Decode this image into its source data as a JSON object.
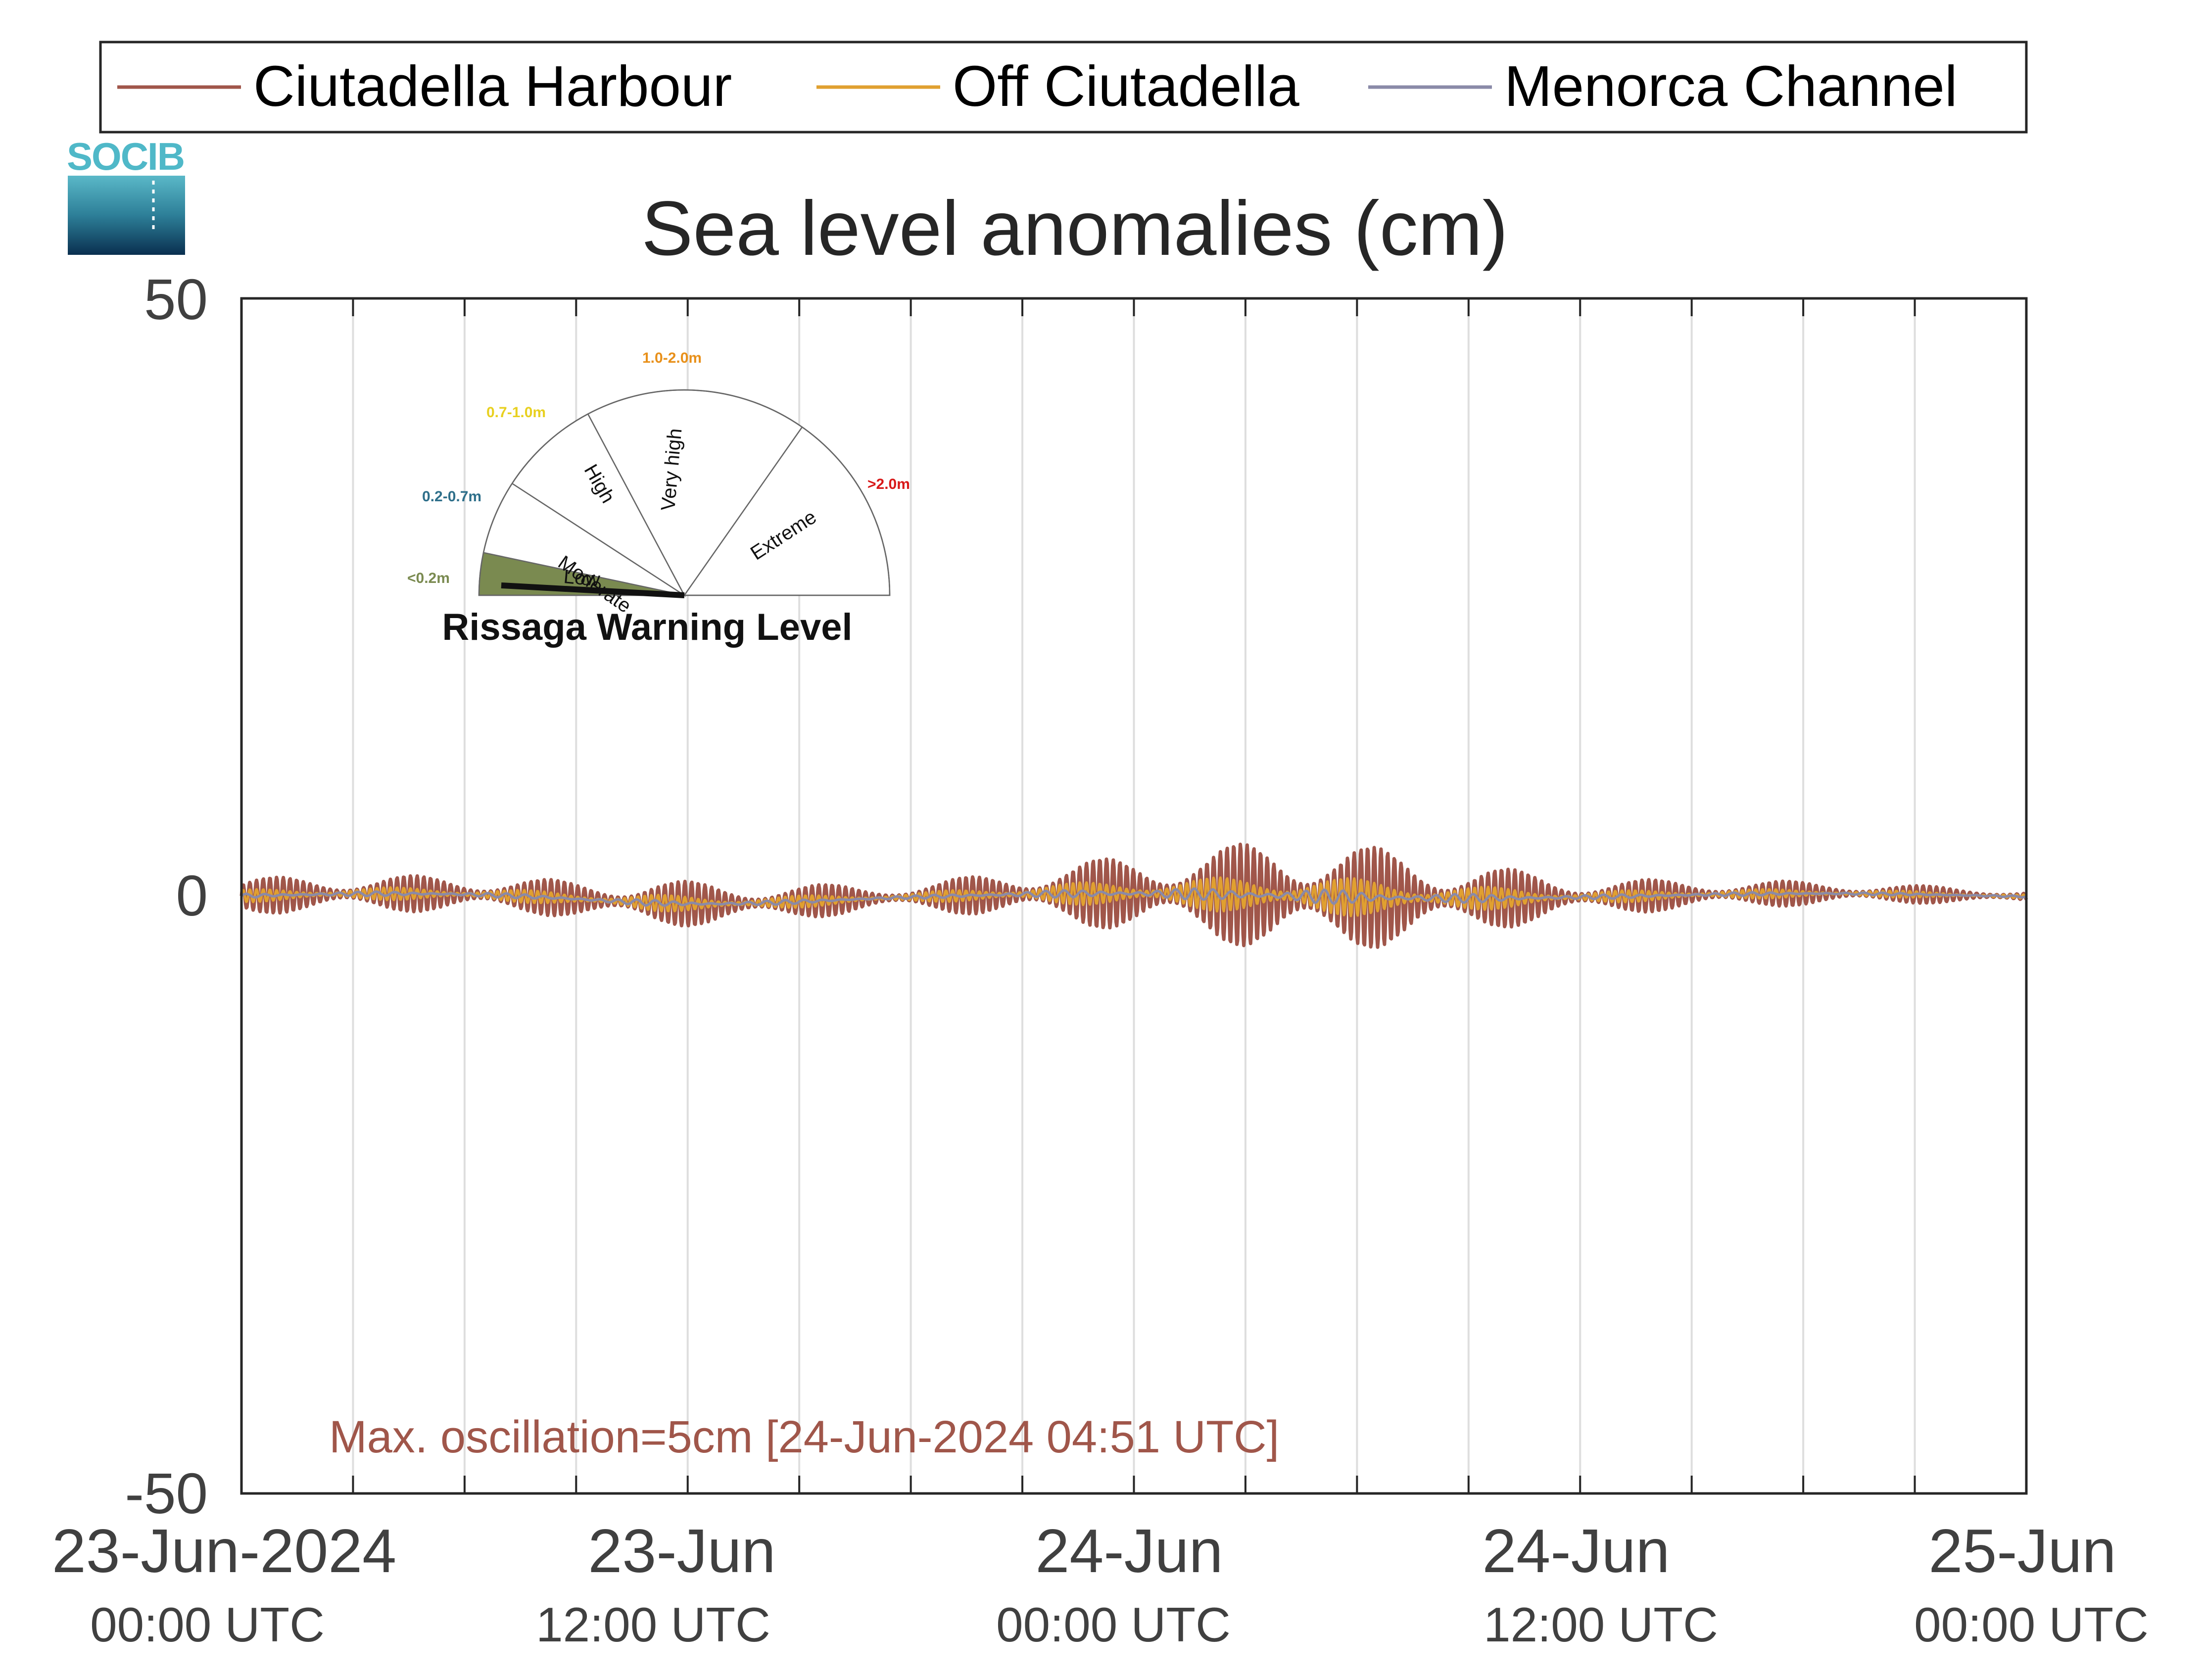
{
  "chart_data": {
    "type": "line",
    "title": "Sea level anomalies (cm)",
    "xlabel": "",
    "ylabel": "",
    "ylim": [
      -50,
      50
    ],
    "yticks": [
      -50,
      0,
      50
    ],
    "xlim": [
      "2024-06-23T00:00Z",
      "2024-06-25T00:00Z"
    ],
    "xtick_labels": [
      {
        "x": "2024-06-23T00:00Z",
        "line1": "23-Jun-2024",
        "line2": "00:00 UTC"
      },
      {
        "x": "2024-06-23T12:00Z",
        "line1": "23-Jun",
        "line2": "12:00 UTC"
      },
      {
        "x": "2024-06-24T00:00Z",
        "line1": "24-Jun",
        "line2": "00:00 UTC"
      },
      {
        "x": "2024-06-24T12:00Z",
        "line1": "24-Jun",
        "line2": "12:00 UTC"
      },
      {
        "x": "2024-06-25T00:00Z",
        "line1": "25-Jun",
        "line2": "00:00 UTC"
      }
    ],
    "grid": "vertical, every 3 hours",
    "legend": {
      "placement": "top, outside"
    },
    "series": [
      {
        "name": "Ciutadella Harbour",
        "color": "#a0564a",
        "description_points": [
          {
            "x": "2024-06-23T00:30Z",
            "amplitude_cm": 1.5
          },
          {
            "x": "2024-06-23T09:00Z",
            "amplitude_cm": 1.5
          },
          {
            "x": "2024-06-23T11:00Z",
            "amplitude_cm": 2.0
          },
          {
            "x": "2024-06-23T18:00Z",
            "amplitude_cm": 1.0
          },
          {
            "x": "2024-06-24T04:51Z",
            "amplitude_cm": 5.0
          },
          {
            "x": "2024-06-24T12:00Z",
            "amplitude_cm": 1.5
          },
          {
            "x": "2024-06-25T00:00Z",
            "amplitude_cm": 0.5
          }
        ]
      },
      {
        "name": "Off Ciutadella",
        "color": "#e0a030"
      },
      {
        "name": "Menorca Channel",
        "color": "#8a8aa8"
      }
    ],
    "annotation": "Max. oscillation=5cm [24-Jun-2024 04:51 UTC]"
  },
  "legend": {
    "items": [
      {
        "label": "Ciutadella Harbour",
        "color": "#a0564a"
      },
      {
        "label": "Off Ciutadella",
        "color": "#e0a030"
      },
      {
        "label": "Menorca Channel",
        "color": "#8a8aa8"
      }
    ]
  },
  "logo": {
    "text": "SOCIB"
  },
  "gauge": {
    "title": "Rissaga Warning Level",
    "needle_level": "Low",
    "sectors": [
      {
        "label": "Low",
        "range": "<0.2m",
        "color": "#7a8a50"
      },
      {
        "label": "Moderate",
        "range": "0.2-0.7m",
        "color": "#2e6f8a"
      },
      {
        "label": "High",
        "range": "0.7-1.0m",
        "color": "#e8d020"
      },
      {
        "label": "Very high",
        "range": "1.0-2.0m",
        "color": "#e8901a"
      },
      {
        "label": "Extreme",
        "range": ">2.0m",
        "color": "#d81818"
      }
    ]
  }
}
